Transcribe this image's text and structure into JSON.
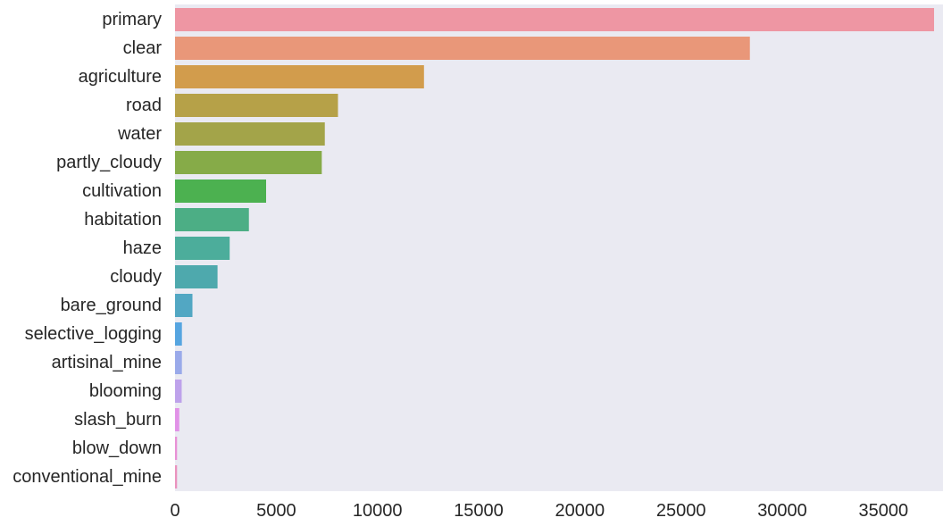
{
  "chart_data": {
    "type": "bar",
    "orientation": "horizontal",
    "title": "",
    "xlabel": "",
    "ylabel": "",
    "xlim": [
      0,
      37500
    ],
    "x_ticks": [
      0,
      5000,
      10000,
      15000,
      20000,
      25000,
      30000,
      35000
    ],
    "x_tick_labels": [
      "0",
      "5000",
      "10000",
      "15000",
      "20000",
      "25000",
      "30000",
      "35000"
    ],
    "grid": false,
    "legend": "none",
    "categories": [
      "primary",
      "clear",
      "agriculture",
      "road",
      "water",
      "partly_cloudy",
      "cultivation",
      "habitation",
      "haze",
      "cloudy",
      "bare_ground",
      "selective_logging",
      "artisinal_mine",
      "blooming",
      "slash_burn",
      "blow_down",
      "conventional_mine"
    ],
    "values": [
      37500,
      28400,
      12300,
      8050,
      7400,
      7250,
      4500,
      3650,
      2700,
      2100,
      860,
      340,
      340,
      330,
      210,
      100,
      100
    ],
    "colors": [
      "#ee96a3",
      "#e99779",
      "#d29c4c",
      "#b6a148",
      "#a3a449",
      "#86ab48",
      "#4cb150",
      "#4cae85",
      "#4cad9b",
      "#4ea9ad",
      "#52a7c3",
      "#56a5e0",
      "#9aaaea",
      "#bea2eb",
      "#e192e7",
      "#e891d6",
      "#ea93be"
    ]
  }
}
